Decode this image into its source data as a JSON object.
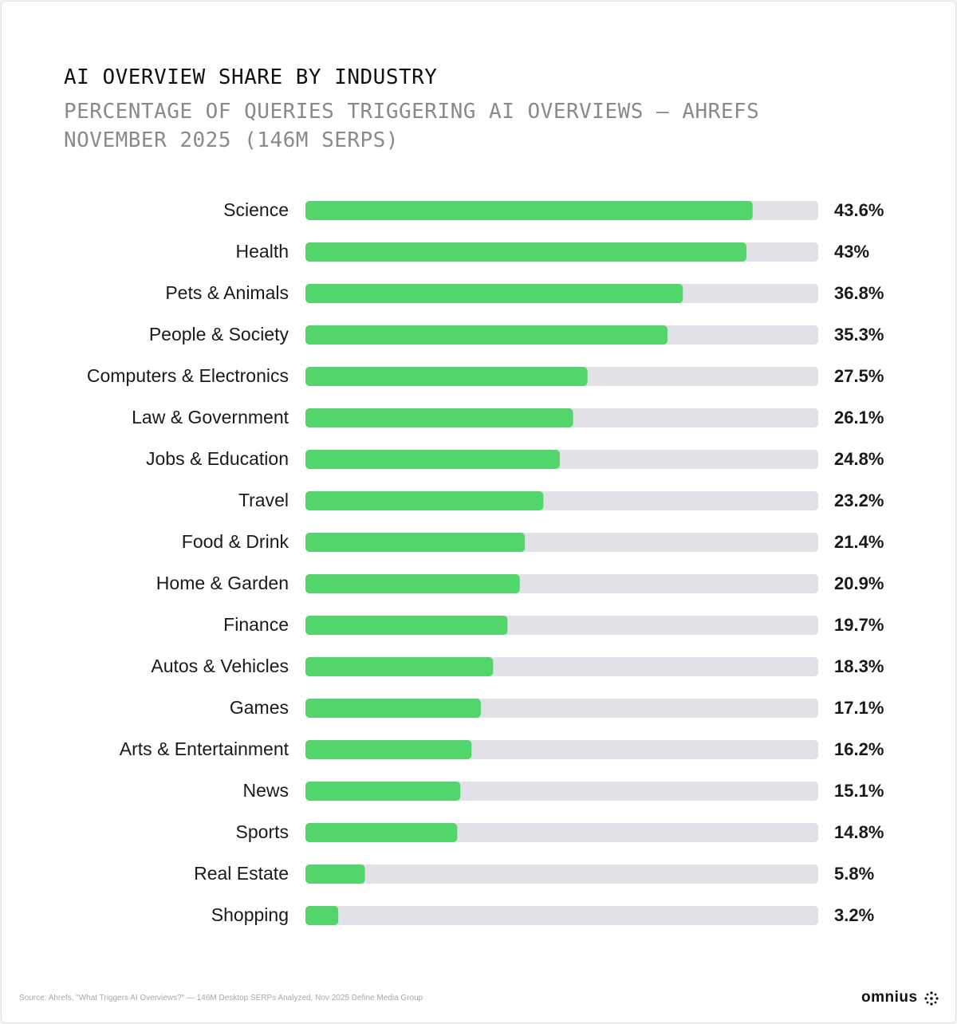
{
  "chart_data": {
    "type": "hbar",
    "title": "AI OVERVIEW SHARE BY INDUSTRY",
    "subtitle": "PERCENTAGE OF QUERIES TRIGGERING AI OVERVIEWS — AHREFS NOVEMBER 2025 (146M SERPS)",
    "categories": [
      "Science",
      "Health",
      "Pets & Animals",
      "People & Society",
      "Computers & Electronics",
      "Law & Government",
      "Jobs & Education",
      "Travel",
      "Food & Drink",
      "Home & Garden",
      "Finance",
      "Autos & Vehicles",
      "Games",
      "Arts & Entertainment",
      "News",
      "Sports",
      "Real Estate",
      "Shopping"
    ],
    "values": [
      43.6,
      43,
      36.8,
      35.3,
      27.5,
      26.1,
      24.8,
      23.2,
      21.4,
      20.9,
      19.7,
      18.3,
      17.1,
      16.2,
      15.1,
      14.8,
      5.8,
      3.2
    ],
    "value_labels": [
      "43.6%",
      "43%",
      "36.8%",
      "35.3%",
      "27.5%",
      "26.1%",
      "24.8%",
      "23.2%",
      "21.4%",
      "20.9%",
      "19.7%",
      "18.3%",
      "17.1%",
      "16.2%",
      "15.1%",
      "14.8%",
      "5.8%",
      "3.2%"
    ],
    "color": "#52d56b",
    "track_color": "#e0e2e7",
    "xlim": [
      0,
      50
    ],
    "source": "Source: Ahrefs, \"What Triggers AI Overviews?\" — 146M Desktop SERPs Analyzed, Nov 2025 Define Media Group",
    "brand": "omnius"
  }
}
